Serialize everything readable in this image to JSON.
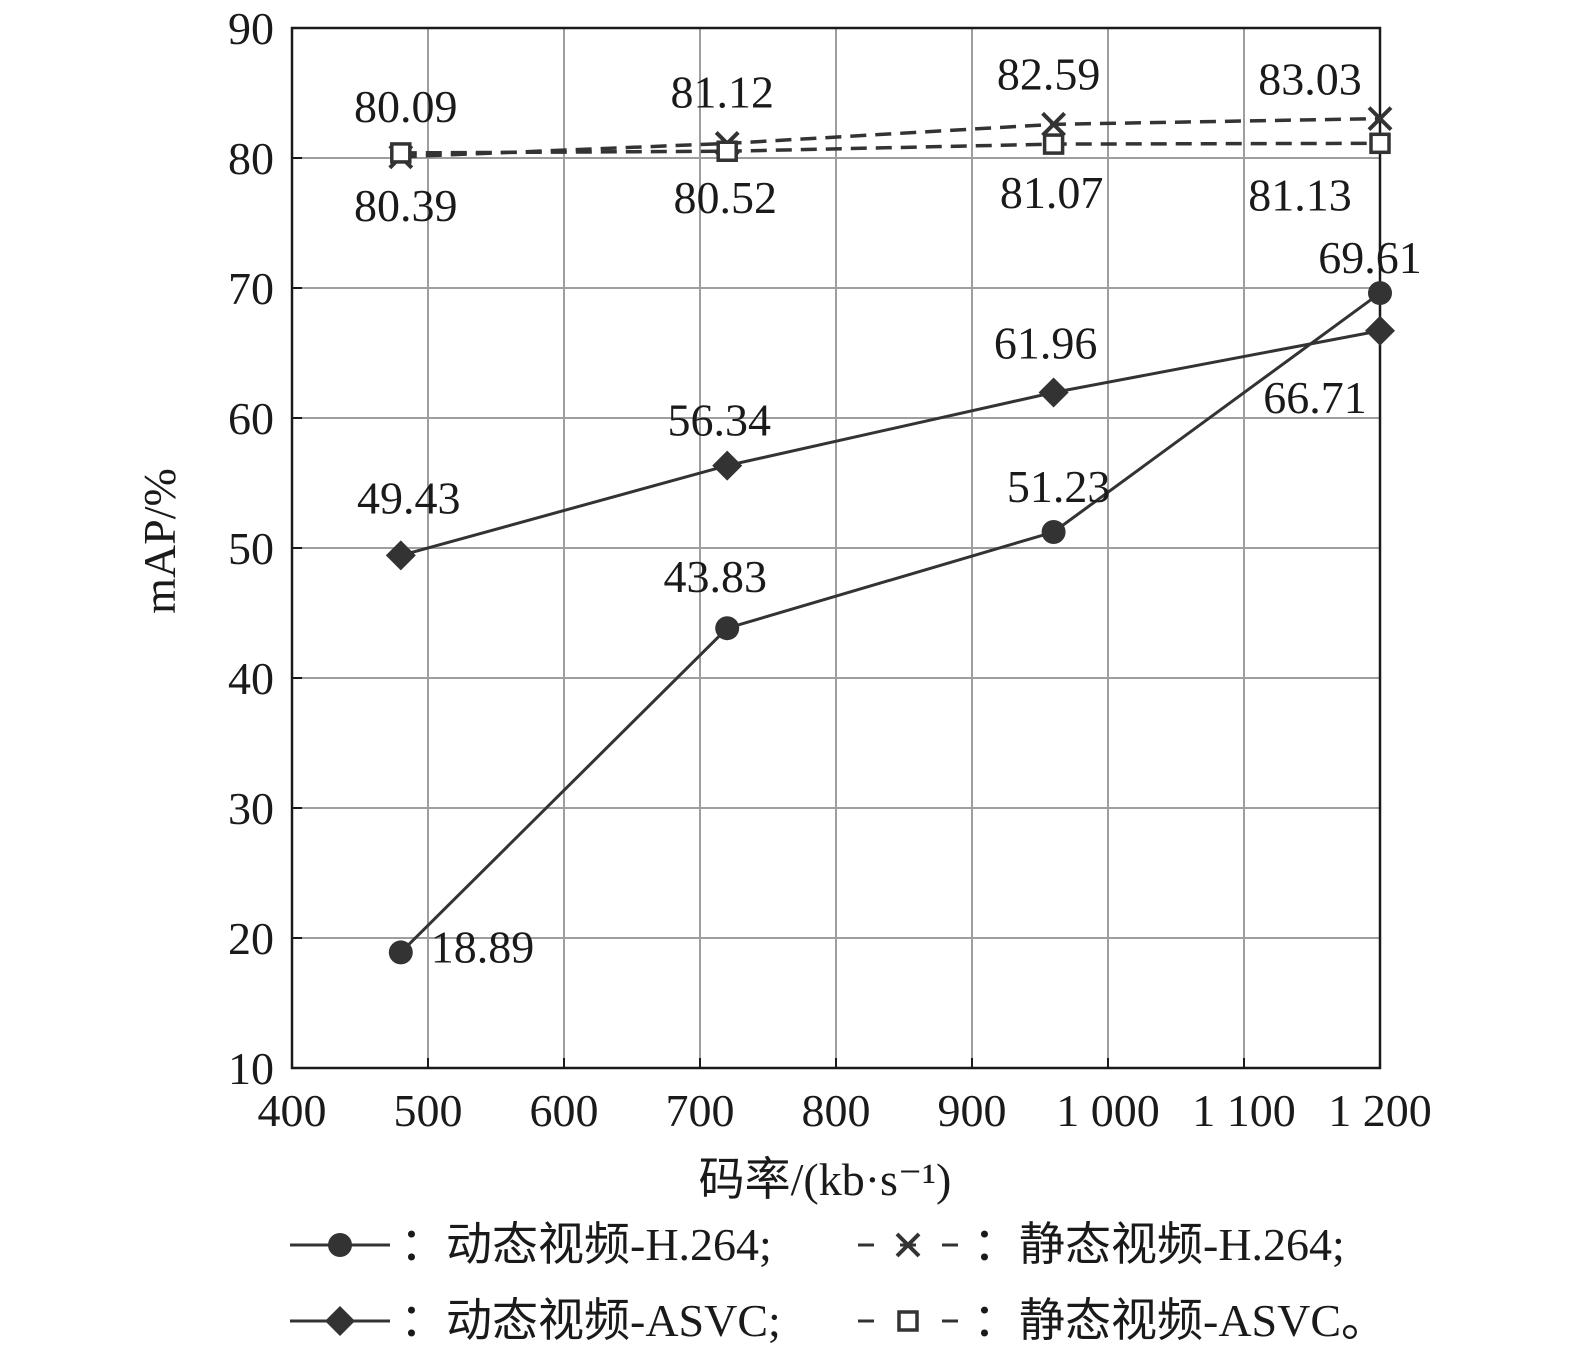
{
  "chart_data": {
    "type": "line",
    "xlabel": "码率/(kb·s⁻¹)",
    "ylabel": "mAP/%",
    "xlim": [
      400,
      1200
    ],
    "ylim": [
      10,
      90
    ],
    "xticks": [
      400,
      500,
      600,
      700,
      800,
      900,
      1000,
      1100,
      1200
    ],
    "xtick_labels": [
      "400",
      "500",
      "600",
      "700",
      "800",
      "900",
      "1 000",
      "1 100",
      "1 200"
    ],
    "yticks": [
      10,
      20,
      30,
      40,
      50,
      60,
      70,
      80,
      90
    ],
    "ytick_labels": [
      "10",
      "20",
      "30",
      "40",
      "50",
      "60",
      "70",
      "80",
      "90"
    ],
    "grid": true,
    "legend_position": "bottom",
    "x": [
      480,
      720,
      960,
      1200
    ],
    "series": [
      {
        "name": "：动态视频-H.264;",
        "marker": "circle",
        "dash": false,
        "values": [
          18.89,
          43.83,
          51.23,
          69.61
        ],
        "labels": [
          "18.89",
          "43.83",
          "51.23",
          "69.61"
        ]
      },
      {
        "name": "：动态视频-ASVC;",
        "marker": "diamond",
        "dash": false,
        "values": [
          49.43,
          56.34,
          61.96,
          66.71
        ],
        "labels": [
          "49.43",
          "56.34",
          "61.96",
          "66.71"
        ]
      },
      {
        "name": "：静态视频-H.264;",
        "marker": "cross",
        "dash": true,
        "values": [
          80.09,
          81.12,
          82.59,
          83.03
        ],
        "labels": [
          "80.09",
          "81.12",
          "82.59",
          "83.03"
        ]
      },
      {
        "name": "：静态视频-ASVC。",
        "marker": "square",
        "dash": true,
        "values": [
          80.39,
          80.52,
          81.07,
          81.13
        ],
        "labels": [
          "80.39",
          "80.52",
          "81.07",
          "81.13"
        ]
      }
    ],
    "colors": {
      "line": "#333333",
      "grid": "#9e9e9e",
      "axis": "#1a1a1a"
    }
  }
}
